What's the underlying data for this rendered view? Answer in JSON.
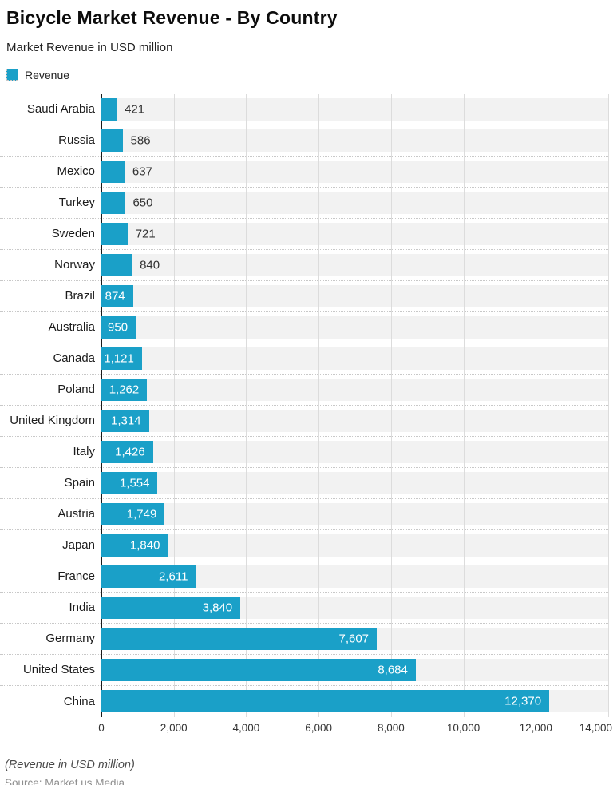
{
  "header": {
    "title": "Bicycle Market Revenue - By Country",
    "subtitle": "Market Revenue in USD million",
    "legend": {
      "label": "Revenue",
      "color": "#1aa0c8"
    }
  },
  "chart_data": {
    "type": "bar",
    "orientation": "horizontal",
    "title": "Bicycle Market Revenue - By Country",
    "subtitle": "Market Revenue in USD million",
    "legend_entries": [
      "Revenue"
    ],
    "legend_position": "top-left",
    "grid": "vertical",
    "xlim": [
      0,
      14000
    ],
    "x_ticks": [
      "0",
      "2,000",
      "4,000",
      "6,000",
      "8,000",
      "10,000",
      "12,000",
      "14,000"
    ],
    "categories": [
      "Saudi Arabia",
      "Russia",
      "Mexico",
      "Turkey",
      "Sweden",
      "Norway",
      "Brazil",
      "Australia",
      "Canada",
      "Poland",
      "United Kingdom",
      "Italy",
      "Spain",
      "Austria",
      "Japan",
      "France",
      "India",
      "Germany",
      "United States",
      "China"
    ],
    "values": [
      421,
      586,
      637,
      650,
      721,
      840,
      874,
      950,
      1121,
      1262,
      1314,
      1426,
      1554,
      1749,
      1840,
      2611,
      3840,
      7607,
      8684,
      12370
    ],
    "value_labels": [
      "421",
      "586",
      "637",
      "650",
      "721",
      "840",
      "874",
      "950",
      "1,121",
      "1,262",
      "1,314",
      "1,426",
      "1,554",
      "1,749",
      "1,840",
      "2,611",
      "3,840",
      "7,607",
      "8,684",
      "12,370"
    ],
    "series_name": "Revenue",
    "bar_color": "#1aa0c8",
    "row_band_color": "#f2f2f2"
  },
  "footer": {
    "note": "(Revenue in USD million)",
    "source": "Source: Market.us Media"
  },
  "colors": {
    "bar": "#1aa0c8",
    "row_band": "#f2f2f2",
    "gridline": "#dcdcdc",
    "axis": "#1a1a1a",
    "dotted_separator": "#c8c8c8"
  }
}
